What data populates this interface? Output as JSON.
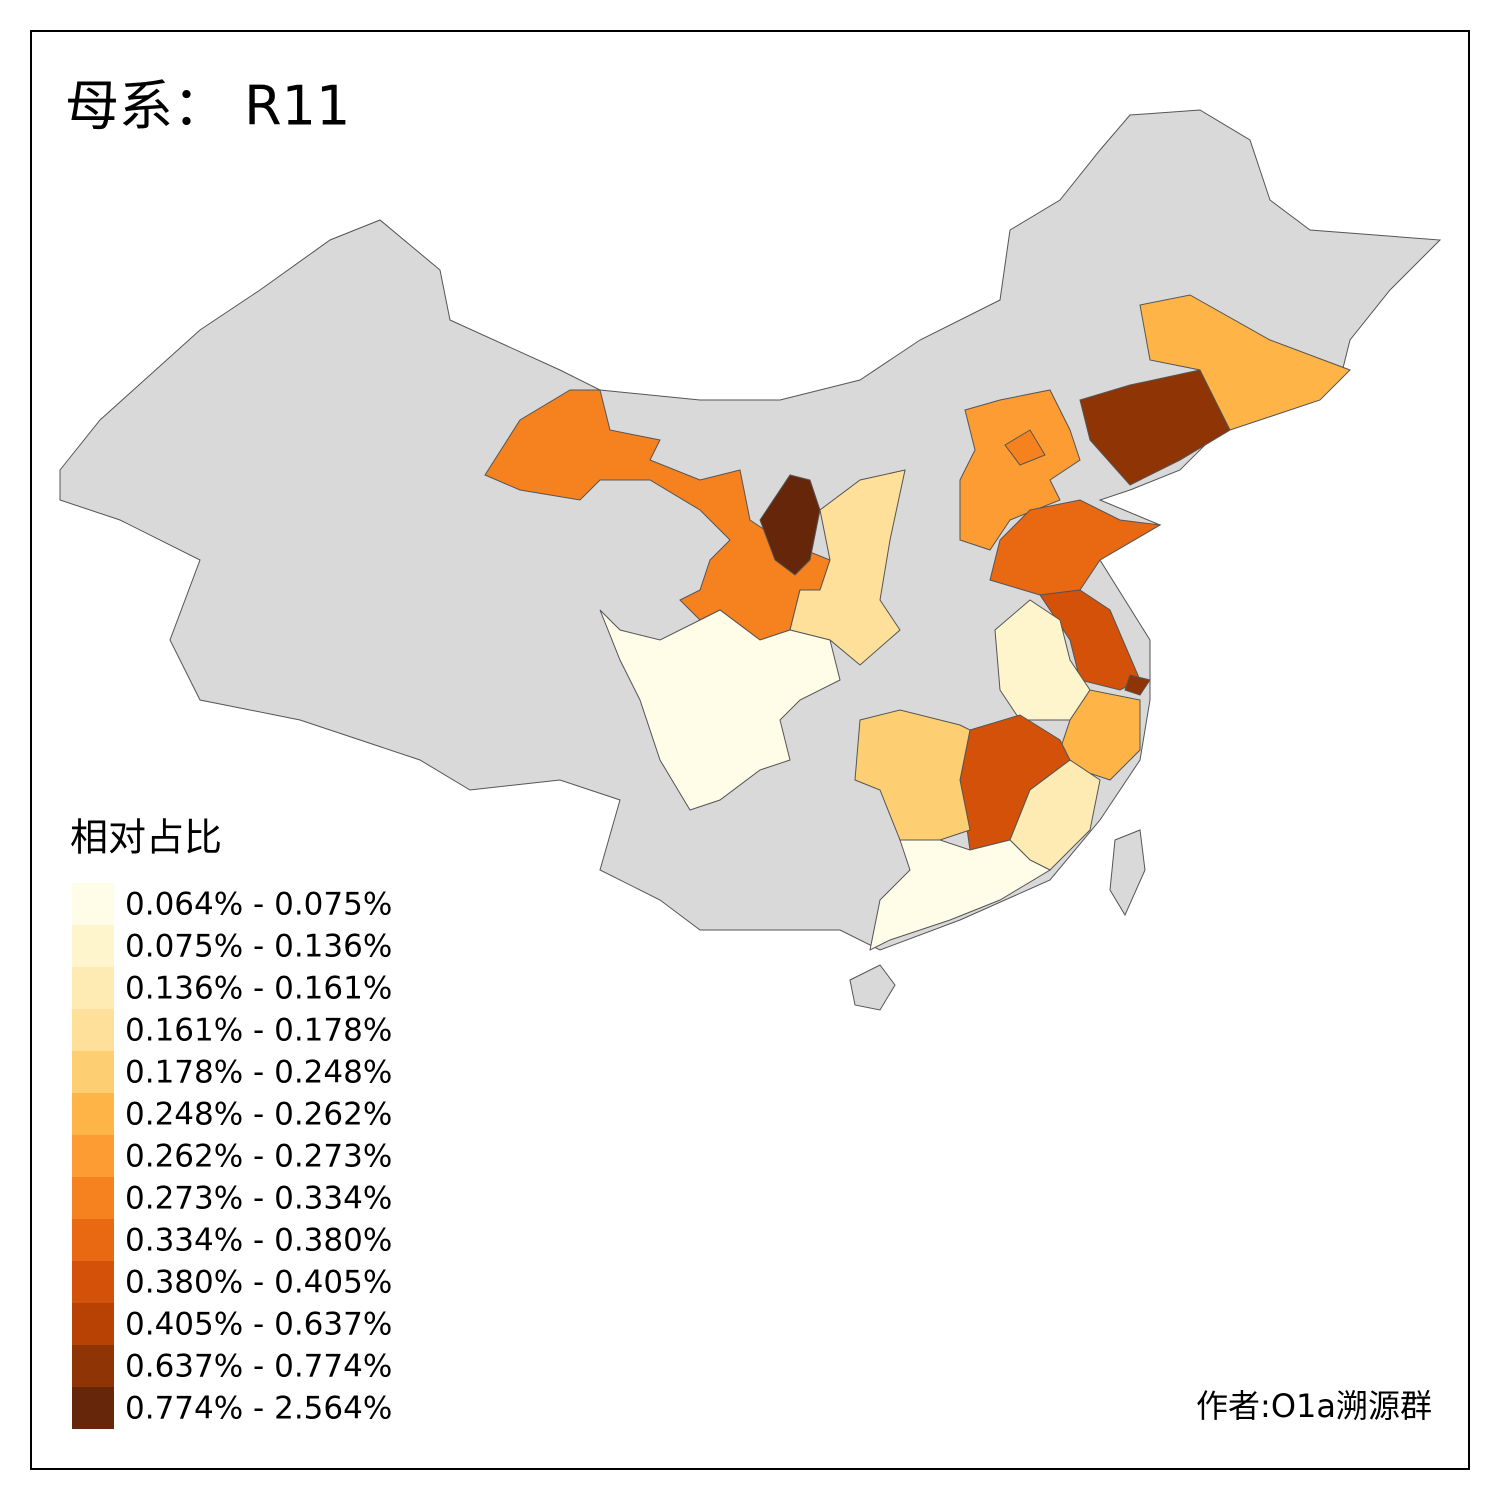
{
  "title": "母系： R11",
  "legend": {
    "title": "相对占比",
    "items": [
      {
        "label": "0.064% - 0.075%",
        "color": "#fffde8"
      },
      {
        "label": "0.075% - 0.136%",
        "color": "#fff5cc"
      },
      {
        "label": "0.136% - 0.161%",
        "color": "#feebb4"
      },
      {
        "label": "0.161% - 0.178%",
        "color": "#fee09a"
      },
      {
        "label": "0.178% - 0.248%",
        "color": "#fecf72"
      },
      {
        "label": "0.248% - 0.262%",
        "color": "#feb446"
      },
      {
        "label": "0.262% - 0.273%",
        "color": "#fd9c32"
      },
      {
        "label": "0.273% - 0.334%",
        "color": "#f6811f"
      },
      {
        "label": "0.334% - 0.380%",
        "color": "#e86912"
      },
      {
        "label": "0.380% - 0.405%",
        "color": "#d4510a"
      },
      {
        "label": "0.405% - 0.637%",
        "color": "#b84104"
      },
      {
        "label": "0.637% - 0.774%",
        "color": "#8f3404"
      },
      {
        "label": "0.774% - 2.564%",
        "color": "#66260a"
      }
    ]
  },
  "credit": "作者:O1a溯源群"
}
